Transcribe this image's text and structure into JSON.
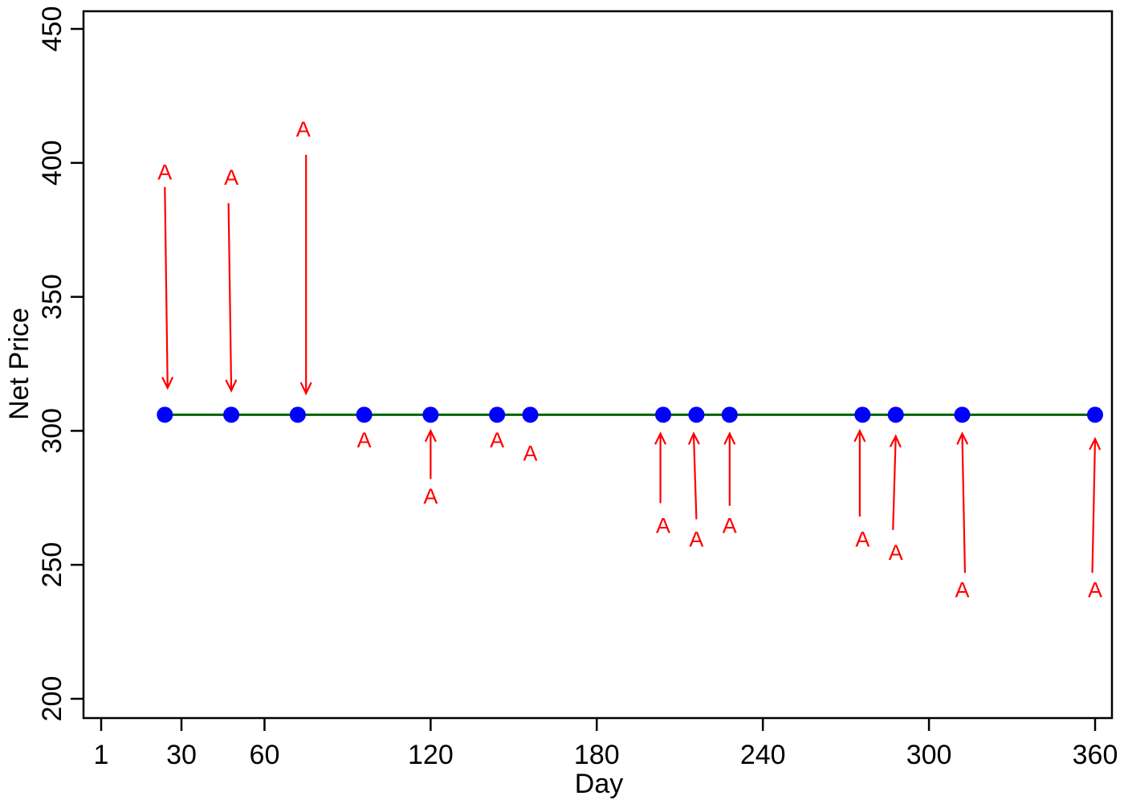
{
  "chart_data": {
    "type": "scatter",
    "title": "",
    "xlabel": "Day",
    "ylabel": "Net Price",
    "xlim": [
      -3,
      364
    ],
    "ylim": [
      195,
      455
    ],
    "x_ticks": [
      1,
      30,
      60,
      120,
      180,
      240,
      300,
      360
    ],
    "y_ticks": [
      200,
      250,
      300,
      350,
      400,
      450
    ],
    "grid": false,
    "legend": "none",
    "reference_line": {
      "y": 306,
      "x_start": 24,
      "x_end": 360,
      "color": "#006400"
    },
    "points": {
      "color": "#0000ff",
      "x": [
        24,
        48,
        72,
        96,
        120,
        144,
        156,
        204,
        216,
        228,
        276,
        288,
        312,
        360
      ],
      "y": [
        306,
        306,
        306,
        306,
        306,
        306,
        306,
        306,
        306,
        306,
        306,
        306,
        306,
        306
      ]
    },
    "annotations": {
      "color": "#ff0000",
      "label": "A",
      "items": [
        {
          "x": 24,
          "y": 396
        },
        {
          "x": 48,
          "y": 394
        },
        {
          "x": 74,
          "y": 412
        },
        {
          "x": 96,
          "y": 296
        },
        {
          "x": 120,
          "y": 275
        },
        {
          "x": 144,
          "y": 296
        },
        {
          "x": 156,
          "y": 291
        },
        {
          "x": 204,
          "y": 264
        },
        {
          "x": 216,
          "y": 259
        },
        {
          "x": 228,
          "y": 264
        },
        {
          "x": 276,
          "y": 259
        },
        {
          "x": 288,
          "y": 254
        },
        {
          "x": 312,
          "y": 240
        },
        {
          "x": 360,
          "y": 240
        }
      ],
      "arrows": [
        {
          "from": [
            24,
            391
          ],
          "to": [
            25,
            316
          ]
        },
        {
          "from": [
            47,
            385
          ],
          "to": [
            48,
            315
          ]
        },
        {
          "from": [
            75,
            403
          ],
          "to": [
            75,
            314
          ]
        },
        {
          "from": [
            120,
            282
          ],
          "to": [
            120,
            300
          ]
        },
        {
          "from": [
            203,
            273
          ],
          "to": [
            203,
            299
          ]
        },
        {
          "from": [
            216,
            267
          ],
          "to": [
            215,
            299
          ]
        },
        {
          "from": [
            228,
            272
          ],
          "to": [
            228,
            299
          ]
        },
        {
          "from": [
            275,
            268
          ],
          "to": [
            275,
            300
          ]
        },
        {
          "from": [
            287,
            263
          ],
          "to": [
            288,
            298
          ]
        },
        {
          "from": [
            313,
            247
          ],
          "to": [
            312,
            299
          ]
        },
        {
          "from": [
            359,
            247
          ],
          "to": [
            360,
            297
          ]
        }
      ]
    }
  }
}
